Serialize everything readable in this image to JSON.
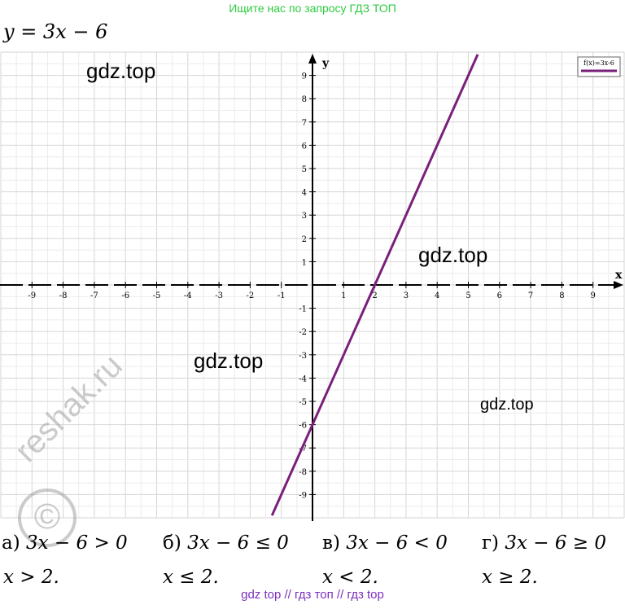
{
  "banner_top": {
    "text": "Ищите нас по запросу ГДЗ ТОП",
    "color": "#2ecc40"
  },
  "equation": "y = 3x − 6",
  "watermarks": [
    "gdz.top",
    "gdz.top",
    "gdz.top",
    "gdz.top"
  ],
  "reshak_watermark": "reshak.ru",
  "chart_data": {
    "type": "line",
    "xlabel": "x",
    "ylabel": "y",
    "xlim": [
      -10,
      10
    ],
    "ylim": [
      -10,
      10
    ],
    "x_ticks": [
      -9,
      -8,
      -7,
      -6,
      -5,
      -4,
      -3,
      -2,
      -1,
      1,
      2,
      3,
      4,
      5,
      6,
      7,
      8,
      9
    ],
    "y_ticks": [
      9,
      8,
      7,
      6,
      5,
      4,
      3,
      2,
      1,
      -1,
      -2,
      -3,
      -4,
      -5,
      -6,
      -7,
      -8,
      -9
    ],
    "grid": true,
    "legend_position": "top-right",
    "series": [
      {
        "name": "f(x)=3x-6",
        "color": "#7a1f7a",
        "x": [
          -1.3,
          0,
          1,
          2,
          3,
          4,
          5,
          5.3
        ],
        "y": [
          -9.9,
          -6,
          -3,
          0,
          3,
          6,
          9,
          9.9
        ]
      }
    ]
  },
  "answers": [
    {
      "letter": "а)",
      "inequality": "3x − 6 > 0",
      "solution": "x > 2."
    },
    {
      "letter": "б)",
      "inequality": "3x − 6 ≤ 0",
      "solution": "x ≤ 2."
    },
    {
      "letter": "в)",
      "inequality": "3x − 6 < 0",
      "solution": "x < 2."
    },
    {
      "letter": "г)",
      "inequality": "3x − 6 ≥ 0",
      "solution": "x ≥ 2."
    }
  ],
  "banner_bottom": {
    "text": "gdz top  //  гдз топ  //  гдз top",
    "color": "#7b2fbe"
  }
}
